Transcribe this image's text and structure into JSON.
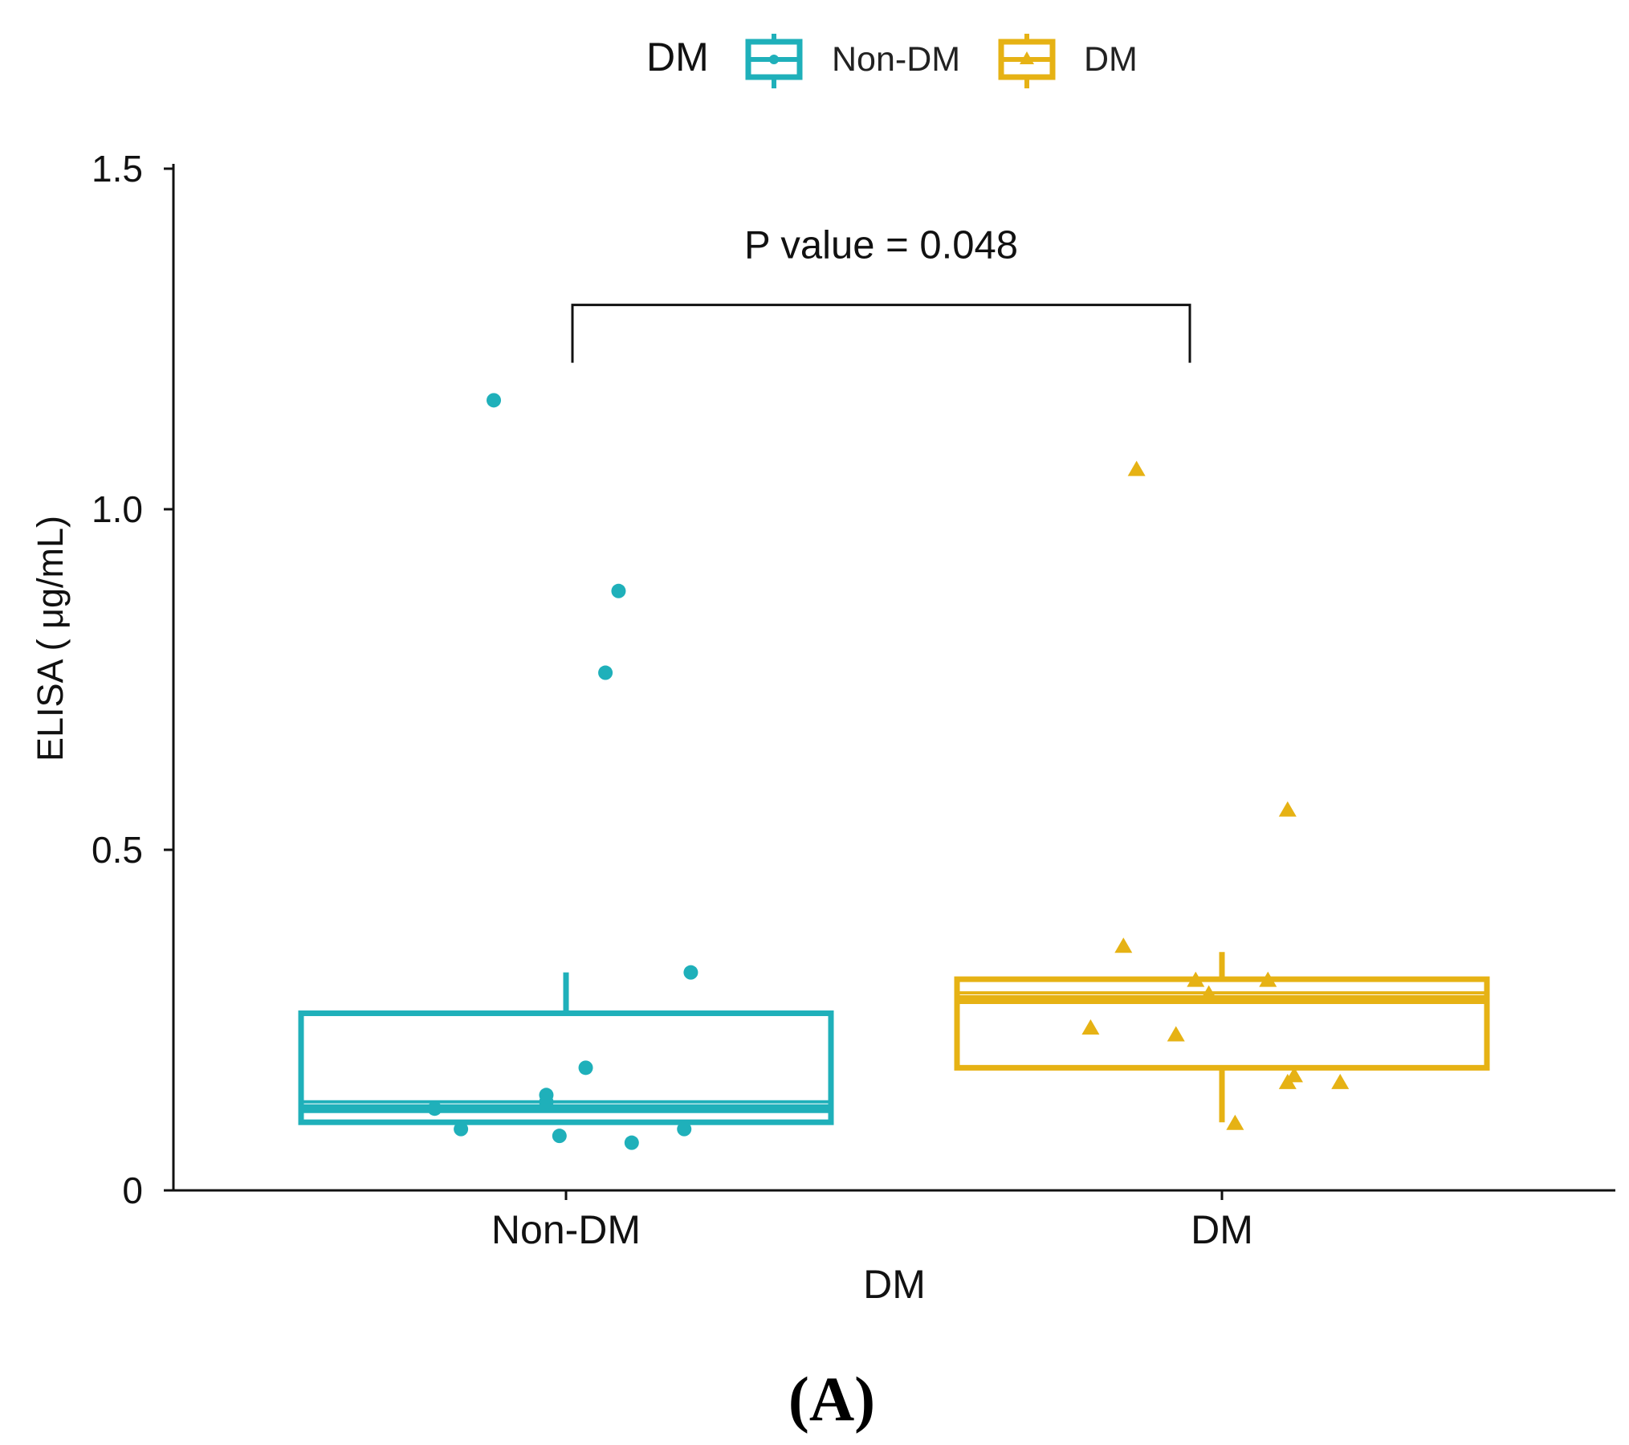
{
  "chart_data": {
    "type": "box",
    "panel_label": "(A)",
    "xlabel": "DM",
    "ylabel": "ELISA ( μg/mL)",
    "ylim": [
      0,
      1.5
    ],
    "yticks": [
      0,
      0.5,
      1.0,
      1.5
    ],
    "ytick_labels": [
      "0",
      "0.5",
      "1.0",
      "1.5"
    ],
    "categories": [
      "Non-DM",
      "DM"
    ],
    "legend": {
      "title": "DM",
      "position": "top",
      "entries": [
        {
          "label": "Non-DM",
          "color": "#1fb0ba",
          "marker": "circle"
        },
        {
          "label": "DM",
          "color": "#e6b214",
          "marker": "triangle"
        }
      ]
    },
    "series": [
      {
        "name": "Non-DM",
        "color": "#1fb0ba",
        "marker": "circle",
        "box": {
          "whisker_low": 0.1,
          "q1": 0.1,
          "median": 0.12,
          "q3": 0.26,
          "whisker_high": 0.32,
          "mean": 0.13
        },
        "points": [
          {
            "x": -0.11,
            "y": 1.16
          },
          {
            "x": 0.08,
            "y": 0.88
          },
          {
            "x": 0.06,
            "y": 0.76
          },
          {
            "x": 0.19,
            "y": 0.32
          },
          {
            "x": 0.03,
            "y": 0.18
          },
          {
            "x": -0.03,
            "y": 0.14
          },
          {
            "x": -0.03,
            "y": 0.13
          },
          {
            "x": -0.2,
            "y": 0.12
          },
          {
            "x": -0.16,
            "y": 0.09
          },
          {
            "x": -0.01,
            "y": 0.08
          },
          {
            "x": 0.1,
            "y": 0.07
          },
          {
            "x": 0.18,
            "y": 0.09
          }
        ]
      },
      {
        "name": "DM",
        "color": "#e6b214",
        "marker": "triangle",
        "box": {
          "whisker_low": 0.1,
          "q1": 0.18,
          "median": 0.28,
          "q3": 0.31,
          "whisker_high": 0.35,
          "mean": 0.29
        },
        "points": [
          {
            "x": -0.13,
            "y": 1.06
          },
          {
            "x": 0.1,
            "y": 0.56
          },
          {
            "x": -0.15,
            "y": 0.36
          },
          {
            "x": -0.04,
            "y": 0.31
          },
          {
            "x": 0.07,
            "y": 0.31
          },
          {
            "x": -0.02,
            "y": 0.29
          },
          {
            "x": -0.2,
            "y": 0.24
          },
          {
            "x": -0.07,
            "y": 0.23
          },
          {
            "x": 0.11,
            "y": 0.17
          },
          {
            "x": 0.1,
            "y": 0.16
          },
          {
            "x": 0.18,
            "y": 0.16
          },
          {
            "x": 0.02,
            "y": 0.1
          }
        ]
      }
    ],
    "annotation": {
      "text": "P value = 0.048",
      "from": "Non-DM",
      "to": "DM",
      "y": 1.3
    }
  }
}
